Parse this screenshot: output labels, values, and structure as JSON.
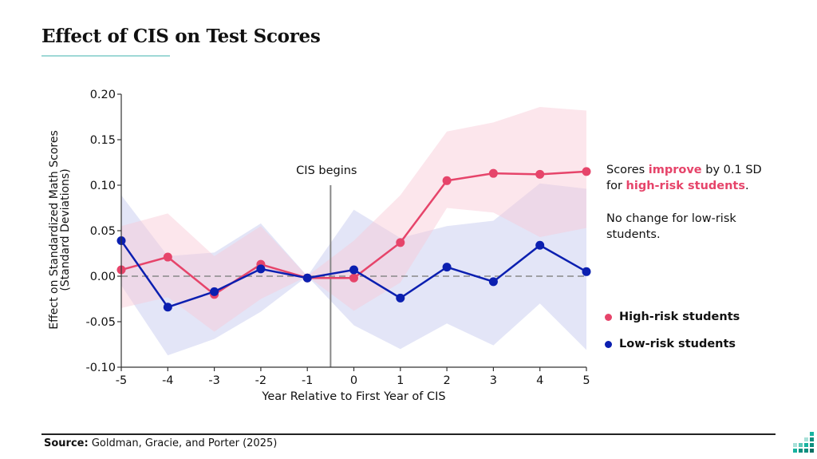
{
  "title": "Effect of CIS on Test Scores",
  "colors": {
    "accent_rule": "#9fd8d6",
    "high_risk": "#e6446a",
    "low_risk": "#0b1fb0",
    "high_band": "#f8c8d4",
    "low_band": "#c8ccf0"
  },
  "annotation": {
    "line1_pre": "Scores ",
    "line1_hl": "improve",
    "line1_post": " by 0.1 SD",
    "line2_pre": "for ",
    "line2_hl": "high-risk students",
    "line2_post": ".",
    "line3": "No change for low-risk",
    "line4": "students."
  },
  "legend": {
    "high": "High-risk students",
    "low": "Low-risk students"
  },
  "source": {
    "label": "Source:",
    "text": " Goldman, Gracie, and Porter (2025)"
  },
  "chart_data": {
    "type": "line",
    "title": "Effect of CIS on Test Scores",
    "xlabel": "Year Relative to First Year of CIS",
    "ylabel_line1": "Effect on Standardized Math Scores",
    "ylabel_line2": "(Standard Deviations)",
    "x": [
      -5,
      -4,
      -3,
      -2,
      -1,
      0,
      1,
      2,
      3,
      4,
      5
    ],
    "x_ticks": [
      "-5",
      "-4",
      "-3",
      "-2",
      "-1",
      "0",
      "1",
      "2",
      "3",
      "4",
      "5"
    ],
    "xlim": [
      -5,
      5
    ],
    "ylim": [
      -0.1,
      0.2
    ],
    "y_ticks": [
      -0.1,
      -0.05,
      0.0,
      0.05,
      0.1,
      0.15,
      0.2
    ],
    "y_tick_labels": [
      "-0.10",
      "-0.05",
      "0.00",
      "0.05",
      "0.10",
      "0.15",
      "0.20"
    ],
    "reference_line": {
      "y": 0,
      "style": "dashed"
    },
    "event_line": {
      "x": -0.5,
      "label": "CIS begins"
    },
    "legend_position": "right",
    "grid": false,
    "series": [
      {
        "name": "High-risk students",
        "values": [
          0.007,
          0.021,
          -0.02,
          0.013,
          -0.002,
          -0.002,
          0.037,
          0.105,
          0.113,
          0.112,
          0.115
        ],
        "ci_upper": [
          0.055,
          0.069,
          0.022,
          0.055,
          0.0,
          0.039,
          0.089,
          0.159,
          0.169,
          0.186,
          0.182
        ],
        "ci_lower": [
          -0.035,
          -0.023,
          -0.061,
          -0.025,
          0.0,
          -0.038,
          -0.007,
          0.075,
          0.07,
          0.043,
          0.053
        ]
      },
      {
        "name": "Low-risk students",
        "values": [
          0.039,
          -0.034,
          -0.017,
          0.008,
          -0.002,
          0.007,
          -0.024,
          0.01,
          -0.006,
          0.034,
          0.005
        ],
        "ci_upper": [
          0.089,
          0.022,
          0.026,
          0.058,
          0.0,
          0.073,
          0.042,
          0.055,
          0.061,
          0.102,
          0.096
        ],
        "ci_lower": [
          -0.01,
          -0.087,
          -0.069,
          -0.039,
          0.0,
          -0.054,
          -0.08,
          -0.052,
          -0.076,
          -0.03,
          -0.081
        ]
      }
    ]
  }
}
